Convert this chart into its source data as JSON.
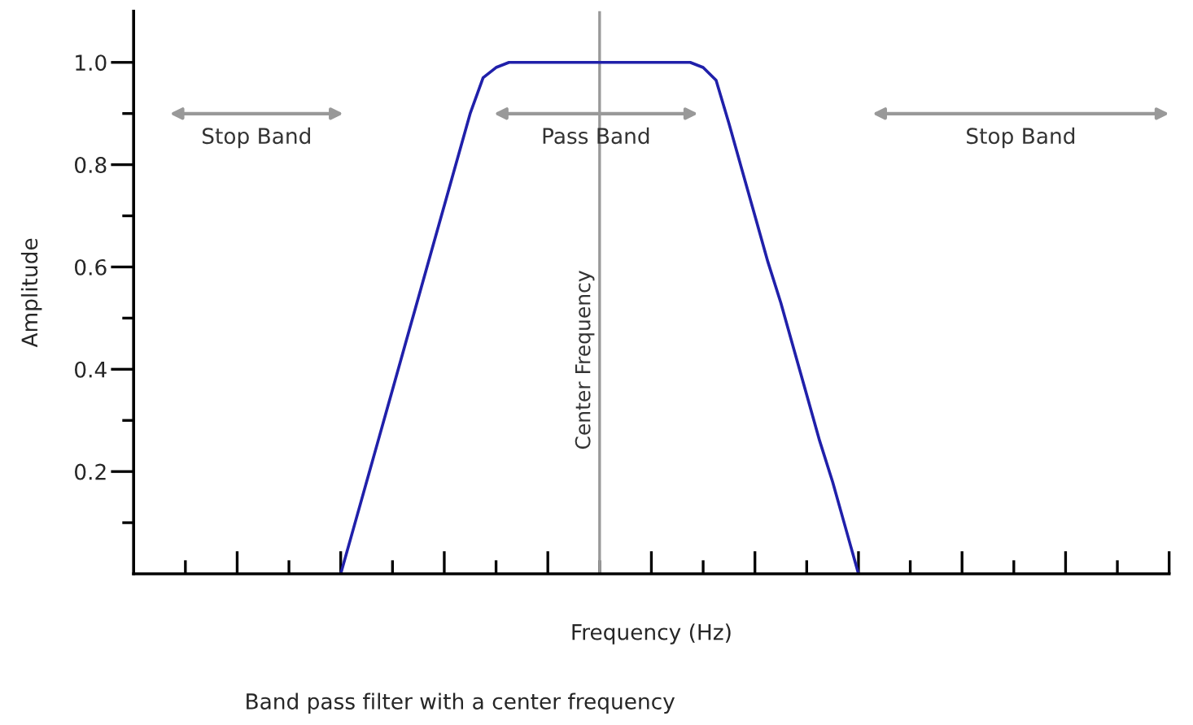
{
  "chart_data": {
    "type": "line",
    "xlabel": "Frequency (Hz)",
    "ylabel": "Amplitude",
    "categories": [
      null,
      null,
      null,
      null,
      null,
      null,
      null,
      null,
      null,
      null,
      null,
      null,
      null,
      null,
      null,
      null,
      null,
      null,
      null,
      null,
      null,
      null,
      null,
      null,
      null,
      null,
      null,
      null,
      null,
      null,
      null,
      null,
      null,
      null,
      null,
      null,
      null,
      null,
      null,
      null,
      null,
      null,
      null,
      null,
      null,
      null,
      null,
      null,
      null,
      null,
      null,
      null,
      null,
      null,
      null,
      null,
      null,
      null,
      null,
      null,
      null,
      null,
      null,
      null,
      null,
      null,
      null,
      null,
      null,
      null,
      null,
      null,
      null,
      null,
      null,
      null,
      null,
      null,
      null,
      null,
      null
    ],
    "series": [
      {
        "color": "#2020aa",
        "values": [
          null,
          null,
          null,
          null,
          null,
          null,
          null,
          null,
          null,
          null,
          null,
          null,
          null,
          null,
          null,
          null,
          0,
          0.09,
          0.18,
          0.27,
          0.36,
          0.45,
          0.54,
          0.63,
          0.72,
          0.81,
          0.9,
          0.97,
          0.99,
          1.0,
          1.0,
          1.0,
          1.0,
          1.0,
          1.0,
          1.0,
          1.0,
          1.0,
          1.0,
          1.0,
          1.0,
          1.0,
          1.0,
          1.0,
          0.99,
          0.965,
          0.88,
          0.79,
          0.7,
          0.61,
          0.53,
          0.44,
          0.35,
          0.26,
          0.18,
          0.09,
          0,
          null,
          null,
          null,
          null,
          null,
          null,
          null,
          null,
          null,
          null,
          null,
          null,
          null,
          null,
          null,
          null,
          null,
          null,
          null,
          null,
          null,
          null,
          null,
          null
        ]
      }
    ],
    "ylim": [
      0,
      1.1
    ],
    "yticks": [
      {
        "value": 0.1,
        "label": null
      },
      {
        "value": 0.2,
        "label": "0.2"
      },
      {
        "value": 0.3,
        "label": null
      },
      {
        "value": 0.4,
        "label": "0.4"
      },
      {
        "value": 0.5,
        "label": null
      },
      {
        "value": 0.6,
        "label": "0.6"
      },
      {
        "value": 0.7,
        "label": null
      },
      {
        "value": 0.8,
        "label": "0.8"
      },
      {
        "value": 0.9,
        "label": null
      },
      {
        "value": 1.0,
        "label": "1.0"
      }
    ],
    "tick_labels": "y",
    "annotations": [
      "Stop Band",
      "Pass Band",
      "Stop Band",
      "Center Frequency",
      "Band pass filter with a center frequency"
    ],
    "grid": false,
    "legend": false,
    "marker": "none",
    "line_style": "solid"
  }
}
